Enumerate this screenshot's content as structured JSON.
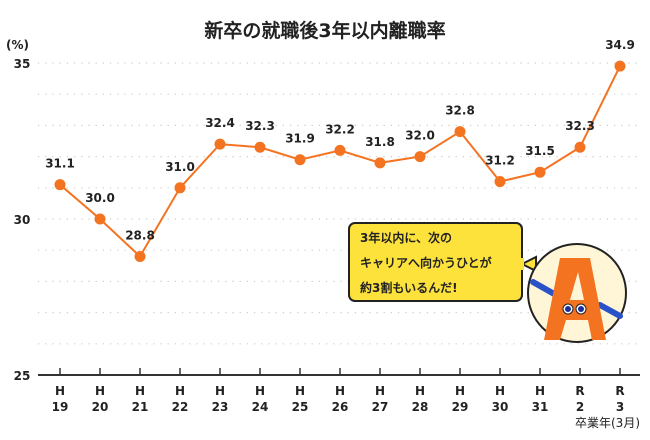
{
  "chart_data": {
    "type": "line",
    "title": "新卒の就職後3年以内離職率",
    "ylabel": "(%)",
    "xlabel": "卒業年(3月)",
    "categories": [
      [
        "H",
        "19"
      ],
      [
        "H",
        "20"
      ],
      [
        "H",
        "21"
      ],
      [
        "H",
        "22"
      ],
      [
        "H",
        "23"
      ],
      [
        "H",
        "24"
      ],
      [
        "H",
        "25"
      ],
      [
        "H",
        "26"
      ],
      [
        "H",
        "27"
      ],
      [
        "H",
        "28"
      ],
      [
        "H",
        "29"
      ],
      [
        "H",
        "30"
      ],
      [
        "H",
        "31"
      ],
      [
        "R",
        "2"
      ],
      [
        "R",
        "3"
      ]
    ],
    "values": [
      31.1,
      30.0,
      28.8,
      31.0,
      32.4,
      32.3,
      31.9,
      32.2,
      31.8,
      32.0,
      32.8,
      31.2,
      31.5,
      32.3,
      34.9
    ],
    "ylim": [
      25,
      35
    ],
    "yticks": [
      25,
      30,
      35
    ],
    "grid": "dotted horizontal every 1",
    "line_color": "#f47320"
  },
  "callout": {
    "lines": [
      "3年以内に、次の",
      "キャリアへ向かうひとが",
      "約3割もいるんだ!"
    ],
    "bg_color": "#fde23b"
  }
}
